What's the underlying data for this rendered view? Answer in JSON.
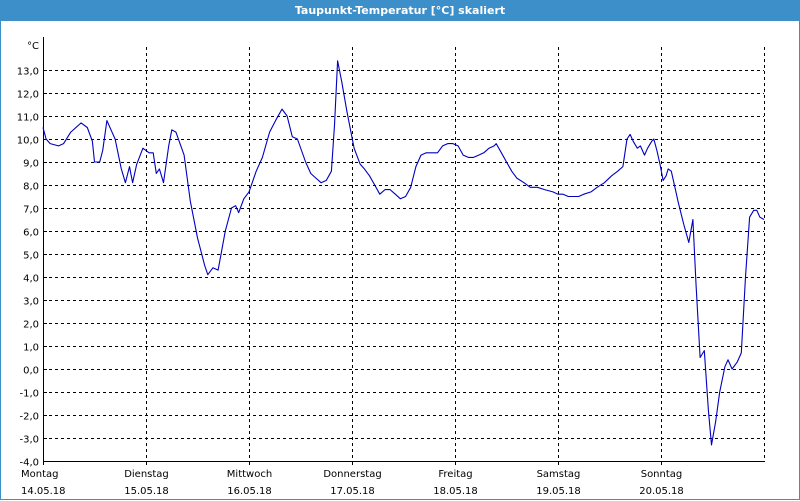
{
  "window": {
    "title": "Taupunkt-Temperatur [°C] skaliert",
    "title_bar_color": "#3c8fc8"
  },
  "chart_data": {
    "type": "line",
    "title": "Taupunkt-Temperatur [°C] skaliert",
    "ylabel": "°C",
    "xlabel": "",
    "ylim": [
      -4,
      14
    ],
    "yticks": [
      13,
      12,
      11,
      10,
      9,
      8,
      7,
      6,
      5,
      4,
      3,
      2,
      1,
      0,
      -1,
      -2,
      -3,
      -4
    ],
    "ytick_labels": [
      "13,0",
      "12,0",
      "11,0",
      "10,0",
      "9,0",
      "8,0",
      "7,0",
      "6,0",
      "5,0",
      "4,0",
      "3,0",
      "2,0",
      "1,0",
      "0,0",
      "-1,0",
      "-2,0",
      "-3,0",
      "-4,0"
    ],
    "x_day_labels": [
      {
        "day": "Montag",
        "date": "14.05.18"
      },
      {
        "day": "Dienstag",
        "date": "15.05.18"
      },
      {
        "day": "Mittwoch",
        "date": "16.05.18"
      },
      {
        "day": "Donnerstag",
        "date": "17.05.18"
      },
      {
        "day": "Freitag",
        "date": "18.05.18"
      },
      {
        "day": "Samstag",
        "date": "19.05.18"
      },
      {
        "day": "Sonntag",
        "date": "20.05.18"
      }
    ],
    "x_unit": "days since 14.05.18 00:00",
    "grid": true,
    "grid_color": "#000000",
    "series": [
      {
        "color": "#0000c0",
        "points": [
          [
            0.0,
            10.5
          ],
          [
            0.03,
            10.0
          ],
          [
            0.07,
            9.8
          ],
          [
            0.15,
            9.7
          ],
          [
            0.2,
            9.8
          ],
          [
            0.27,
            10.3
          ],
          [
            0.37,
            10.7
          ],
          [
            0.43,
            10.5
          ],
          [
            0.48,
            9.9
          ],
          [
            0.5,
            9.0
          ],
          [
            0.55,
            9.0
          ],
          [
            0.58,
            9.5
          ],
          [
            0.62,
            10.8
          ],
          [
            0.66,
            10.4
          ],
          [
            0.7,
            10.0
          ],
          [
            0.76,
            8.7
          ],
          [
            0.8,
            8.1
          ],
          [
            0.84,
            8.8
          ],
          [
            0.87,
            8.1
          ],
          [
            0.91,
            8.9
          ],
          [
            0.97,
            9.6
          ],
          [
            1.03,
            9.4
          ],
          [
            1.07,
            9.4
          ],
          [
            1.1,
            8.5
          ],
          [
            1.13,
            8.7
          ],
          [
            1.17,
            8.1
          ],
          [
            1.22,
            9.7
          ],
          [
            1.25,
            10.4
          ],
          [
            1.29,
            10.3
          ],
          [
            1.33,
            9.8
          ],
          [
            1.37,
            9.3
          ],
          [
            1.43,
            7.3
          ],
          [
            1.5,
            5.7
          ],
          [
            1.57,
            4.5
          ],
          [
            1.6,
            4.1
          ],
          [
            1.65,
            4.4
          ],
          [
            1.7,
            4.3
          ],
          [
            1.77,
            6.0
          ],
          [
            1.83,
            7.0
          ],
          [
            1.87,
            7.1
          ],
          [
            1.9,
            6.8
          ],
          [
            1.95,
            7.4
          ],
          [
            2.0,
            7.7
          ],
          [
            2.07,
            8.6
          ],
          [
            2.13,
            9.2
          ],
          [
            2.2,
            10.3
          ],
          [
            2.27,
            10.9
          ],
          [
            2.32,
            11.3
          ],
          [
            2.37,
            11.0
          ],
          [
            2.42,
            10.1
          ],
          [
            2.47,
            10.0
          ],
          [
            2.55,
            9.0
          ],
          [
            2.6,
            8.5
          ],
          [
            2.65,
            8.3
          ],
          [
            2.7,
            8.1
          ],
          [
            2.75,
            8.2
          ],
          [
            2.8,
            8.6
          ],
          [
            2.83,
            10.6
          ],
          [
            2.86,
            13.4
          ],
          [
            2.9,
            12.5
          ],
          [
            2.95,
            11.2
          ],
          [
            3.02,
            9.6
          ],
          [
            3.08,
            8.9
          ],
          [
            3.12,
            8.7
          ],
          [
            3.17,
            8.4
          ],
          [
            3.22,
            8.0
          ],
          [
            3.27,
            7.6
          ],
          [
            3.32,
            7.8
          ],
          [
            3.37,
            7.8
          ],
          [
            3.42,
            7.6
          ],
          [
            3.47,
            7.4
          ],
          [
            3.52,
            7.5
          ],
          [
            3.57,
            7.9
          ],
          [
            3.62,
            8.8
          ],
          [
            3.67,
            9.3
          ],
          [
            3.72,
            9.4
          ],
          [
            3.78,
            9.4
          ],
          [
            3.83,
            9.4
          ],
          [
            3.88,
            9.7
          ],
          [
            3.93,
            9.8
          ],
          [
            3.98,
            9.8
          ],
          [
            4.03,
            9.7
          ],
          [
            4.08,
            9.3
          ],
          [
            4.13,
            9.2
          ],
          [
            4.18,
            9.2
          ],
          [
            4.23,
            9.3
          ],
          [
            4.28,
            9.4
          ],
          [
            4.33,
            9.6
          ],
          [
            4.38,
            9.7
          ],
          [
            4.4,
            9.8
          ],
          [
            4.45,
            9.4
          ],
          [
            4.5,
            9.0
          ],
          [
            4.55,
            8.6
          ],
          [
            4.6,
            8.3
          ],
          [
            4.67,
            8.1
          ],
          [
            4.73,
            7.9
          ],
          [
            4.8,
            7.9
          ],
          [
            4.87,
            7.8
          ],
          [
            4.95,
            7.7
          ],
          [
            5.0,
            7.6
          ],
          [
            5.05,
            7.6
          ],
          [
            5.1,
            7.5
          ],
          [
            5.15,
            7.5
          ],
          [
            5.2,
            7.5
          ],
          [
            5.25,
            7.6
          ],
          [
            5.32,
            7.7
          ],
          [
            5.38,
            7.9
          ],
          [
            5.45,
            8.1
          ],
          [
            5.52,
            8.4
          ],
          [
            5.58,
            8.6
          ],
          [
            5.63,
            8.8
          ],
          [
            5.67,
            10.0
          ],
          [
            5.7,
            10.2
          ],
          [
            5.73,
            9.9
          ],
          [
            5.77,
            9.6
          ],
          [
            5.8,
            9.7
          ],
          [
            5.84,
            9.3
          ],
          [
            5.87,
            9.6
          ],
          [
            5.91,
            9.9
          ],
          [
            5.93,
            10.0
          ],
          [
            5.96,
            9.5
          ],
          [
            5.99,
            8.9
          ],
          [
            6.02,
            8.2
          ],
          [
            6.05,
            8.4
          ],
          [
            6.07,
            8.7
          ],
          [
            6.1,
            8.6
          ],
          [
            6.13,
            8.0
          ],
          [
            6.17,
            7.2
          ],
          [
            6.22,
            6.3
          ],
          [
            6.27,
            5.5
          ],
          [
            6.31,
            6.5
          ],
          [
            6.34,
            3.7
          ],
          [
            6.38,
            0.5
          ],
          [
            6.42,
            0.8
          ],
          [
            6.46,
            -1.8
          ],
          [
            6.49,
            -3.3
          ],
          [
            6.53,
            -2.3
          ],
          [
            6.57,
            -1.0
          ],
          [
            6.62,
            0.1
          ],
          [
            6.65,
            0.4
          ],
          [
            6.69,
            0.0
          ],
          [
            6.74,
            0.3
          ],
          [
            6.78,
            0.7
          ],
          [
            6.82,
            4.0
          ],
          [
            6.86,
            6.6
          ],
          [
            6.9,
            6.9
          ],
          [
            6.93,
            6.9
          ],
          [
            6.96,
            6.6
          ],
          [
            7.0,
            6.5
          ]
        ]
      }
    ]
  }
}
